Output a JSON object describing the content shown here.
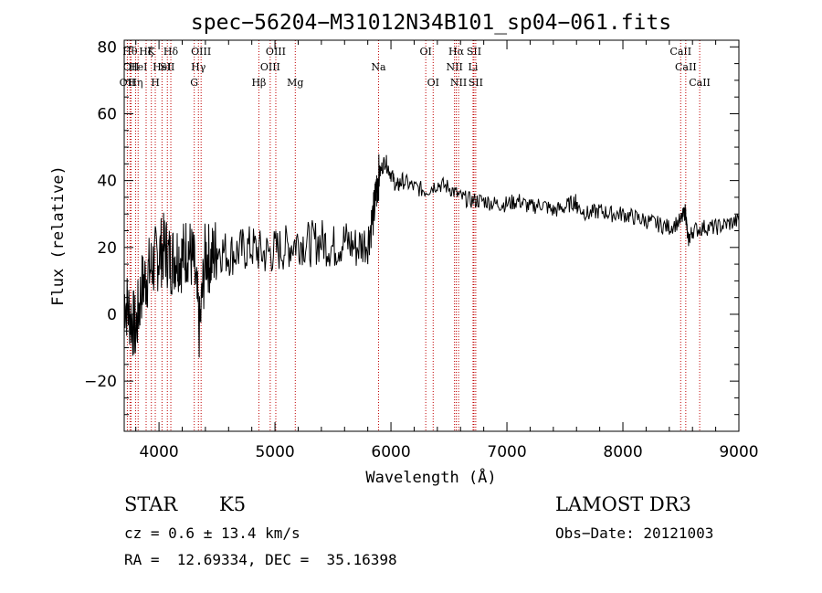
{
  "chart_data": {
    "type": "line",
    "title": "spec−56204−M31012N34B101_sp04−061.fits",
    "xlabel": "Wavelength (Å)",
    "ylabel": "Flux (relative)",
    "xlim": [
      3700,
      9000
    ],
    "ylim": [
      -35,
      82
    ],
    "xticks": [
      4000,
      5000,
      6000,
      7000,
      8000,
      9000
    ],
    "xtick_labels": [
      "4000",
      "5000",
      "6000",
      "7000",
      "8000",
      "9000"
    ],
    "yticks": [
      -20,
      0,
      20,
      40,
      60,
      80
    ],
    "ytick_labels": [
      "−20",
      "0",
      "20",
      "40",
      "60",
      "80"
    ],
    "series": [
      {
        "name": "flux",
        "x": [
          3700,
          3750,
          3800,
          3850,
          3900,
          3950,
          4000,
          4050,
          4100,
          4150,
          4200,
          4250,
          4300,
          4350,
          4400,
          4450,
          4500,
          4600,
          4700,
          4800,
          4900,
          5000,
          5100,
          5200,
          5300,
          5400,
          5500,
          5600,
          5700,
          5800,
          5850,
          5880,
          5900,
          5950,
          6000,
          6050,
          6100,
          6200,
          6300,
          6400,
          6500,
          6600,
          6700,
          6800,
          6900,
          7000,
          7100,
          7200,
          7300,
          7400,
          7500,
          7590,
          7610,
          7700,
          7800,
          7900,
          8000,
          8100,
          8200,
          8300,
          8400,
          8500,
          8540,
          8560,
          8600,
          8700,
          8800,
          8900,
          9000
        ],
        "y": [
          5,
          0,
          -5,
          8,
          12,
          15,
          18,
          20,
          16,
          18,
          17,
          20,
          15,
          -5,
          18,
          16,
          20,
          18,
          19,
          20,
          18,
          19,
          20,
          22,
          21,
          22,
          20,
          22,
          20,
          22,
          30,
          38,
          42,
          46,
          42,
          38,
          40,
          38,
          37,
          39,
          38,
          35,
          34,
          34,
          33,
          33,
          34,
          32,
          33,
          31,
          32,
          34,
          32,
          30,
          31,
          30,
          30,
          29,
          28,
          27,
          26,
          28,
          31,
          22,
          25,
          26,
          26,
          27,
          28
        ]
      }
    ],
    "emission_lines": [
      {
        "wl": 3727,
        "label": "OII",
        "row": 2
      },
      {
        "wl": 3750,
        "label": "Hθ",
        "row": 0
      },
      {
        "wl": 3760,
        "label": "OII",
        "row": 1
      },
      {
        "wl": 3798,
        "label": "Hη",
        "row": 2
      },
      {
        "wl": 3820,
        "label": "HeI",
        "row": 1
      },
      {
        "wl": 3889,
        "label": "Hζ",
        "row": 0
      },
      {
        "wl": 3934,
        "label": "K",
        "row": 0
      },
      {
        "wl": 3968,
        "label": "H",
        "row": 2
      },
      {
        "wl": 4026,
        "label": "HeI",
        "row": 1
      },
      {
        "wl": 4072,
        "label": "SII",
        "row": 1
      },
      {
        "wl": 4102,
        "label": "Hδ",
        "row": 0
      },
      {
        "wl": 4304,
        "label": "G",
        "row": 2
      },
      {
        "wl": 4340,
        "label": "Hγ",
        "row": 1
      },
      {
        "wl": 4363,
        "label": "OIII",
        "row": 0
      },
      {
        "wl": 4861,
        "label": "Hβ",
        "row": 2
      },
      {
        "wl": 4959,
        "label": "OIII",
        "row": 1
      },
      {
        "wl": 5007,
        "label": "OIII",
        "row": 0
      },
      {
        "wl": 5175,
        "label": "Mg",
        "row": 2
      },
      {
        "wl": 5893,
        "label": "Na",
        "row": 1
      },
      {
        "wl": 6300,
        "label": "OI",
        "row": 0
      },
      {
        "wl": 6364,
        "label": "OI",
        "row": 2
      },
      {
        "wl": 6548,
        "label": "NII",
        "row": 1
      },
      {
        "wl": 6563,
        "label": "Hα",
        "row": 0
      },
      {
        "wl": 6583,
        "label": "NII",
        "row": 2
      },
      {
        "wl": 6708,
        "label": "Li",
        "row": 1
      },
      {
        "wl": 6716,
        "label": "SII",
        "row": 0
      },
      {
        "wl": 6731,
        "label": "SII",
        "row": 2
      },
      {
        "wl": 8498,
        "label": "CaII",
        "row": 0
      },
      {
        "wl": 8542,
        "label": "CaII",
        "row": 1
      },
      {
        "wl": 8662,
        "label": "CaII",
        "row": 2
      }
    ]
  },
  "info": {
    "class_label": "STAR",
    "subclass": "K5",
    "survey": "LAMOST DR3",
    "cz": "cz = 0.6 ± 13.4 km/s",
    "obs_date": "Obs−Date: 20121003",
    "coords": "RA =  12.69334, DEC =  35.16398"
  },
  "colors": {
    "line_marker": "#c00000",
    "spectrum": "#000000"
  }
}
